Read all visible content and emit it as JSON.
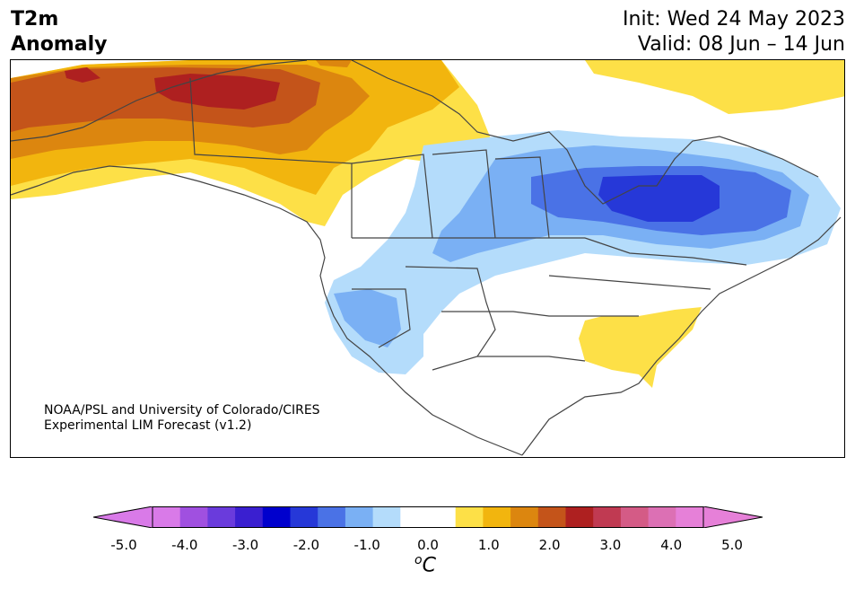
{
  "title": {
    "line1": "T2m",
    "line2": "Anomaly"
  },
  "header": {
    "init": "Init: Wed 24 May 2023",
    "valid": "Valid: 08 Jun – 14 Jun"
  },
  "credit": {
    "line1": "NOAA/PSL and University of Colorado/CIRES",
    "line2": "Experimental LIM Forecast (v1.2)"
  },
  "colorbar": {
    "colors": [
      "#d97ae8",
      "#a050e0",
      "#6a3bdc",
      "#3a1fd0",
      "#0000cd",
      "#2638d8",
      "#4a72e6",
      "#7ab0f4",
      "#b4dcfb",
      "#ffffff",
      "#ffffff",
      "#fde047",
      "#f2b50e",
      "#dc860f",
      "#c4541a",
      "#ae2020",
      "#c03a52",
      "#d45b86",
      "#dc70b4",
      "#e680d8"
    ],
    "under_color": "#d97ae8",
    "over_color": "#e680d8",
    "tick_labels": [
      "-5.0",
      "-4.0",
      "-3.0",
      "-2.0",
      "-1.0",
      "0.0",
      "1.0",
      "2.0",
      "3.0",
      "4.0",
      "5.0"
    ],
    "unit": "C",
    "unit_prefix": "o"
  }
}
